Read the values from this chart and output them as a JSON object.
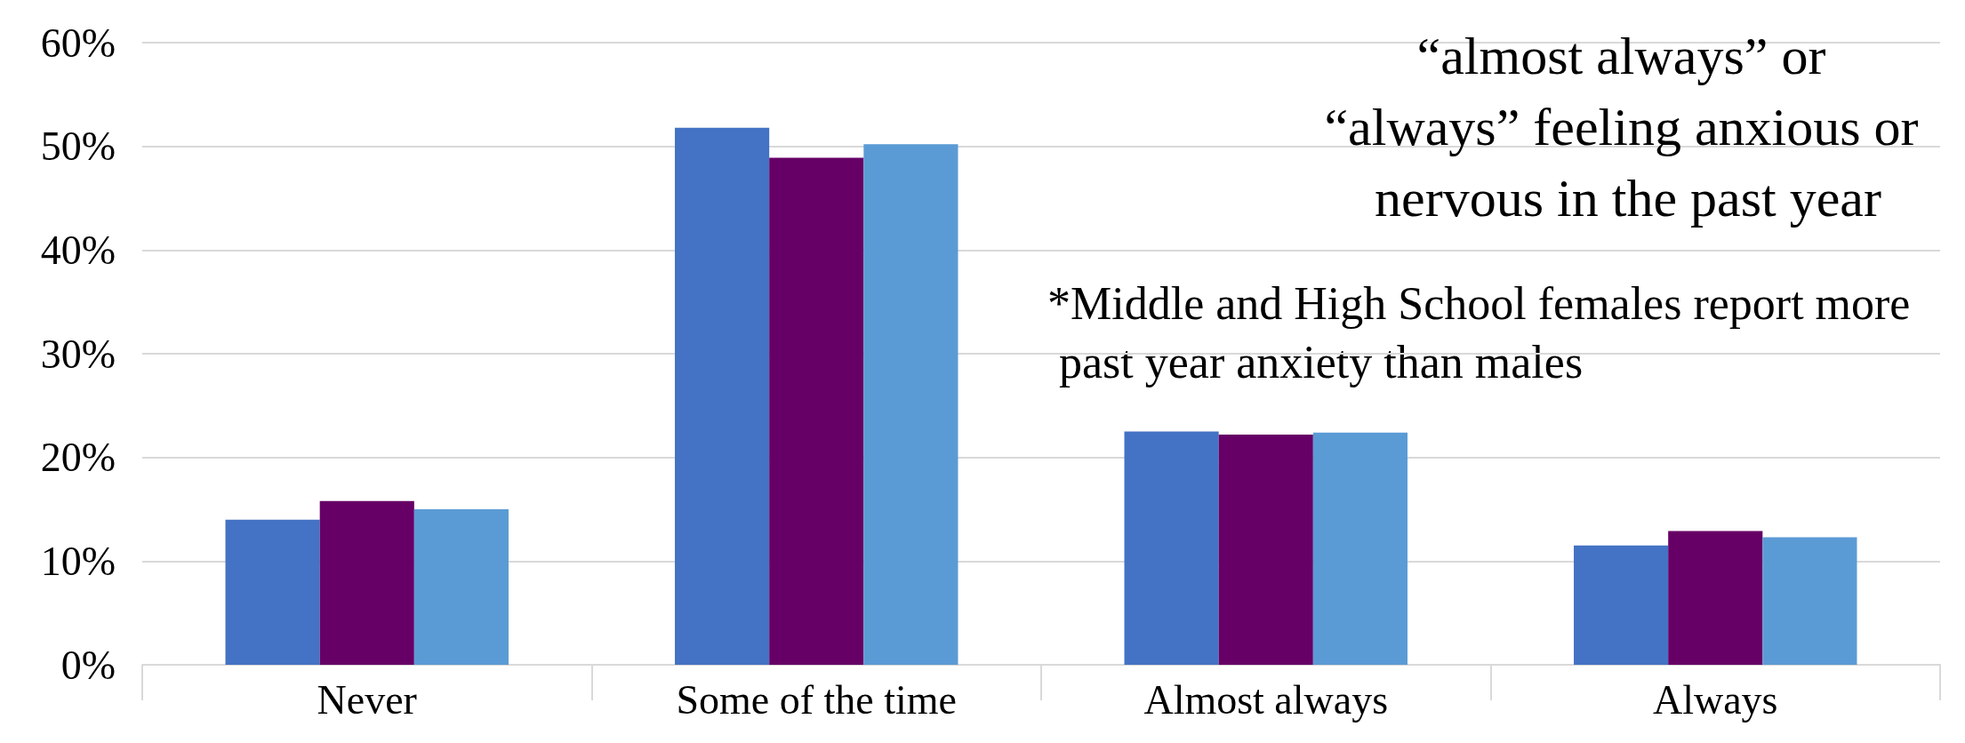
{
  "chart_data": {
    "type": "bar",
    "title": "“almost always” or “always” feeling anxious or nervous in the past year",
    "annotations": [
      "*Middle and High School females report more past year anxiety than males"
    ],
    "categories": [
      "Never",
      "Some of the time",
      "Almost always",
      "Always"
    ],
    "series": [
      {
        "color": "#4472c4",
        "values": [
          14.0,
          51.8,
          22.5,
          11.5
        ]
      },
      {
        "color": "#660066",
        "values": [
          15.8,
          48.9,
          22.2,
          12.9
        ]
      },
      {
        "color": "#5b9bd5",
        "values": [
          15.0,
          50.2,
          22.4,
          12.3
        ]
      }
    ],
    "ylim": [
      0,
      60
    ],
    "yticks": [
      {
        "value": 0,
        "label": "0%"
      },
      {
        "value": 10,
        "label": "10%"
      },
      {
        "value": 20,
        "label": "20%"
      },
      {
        "value": 30,
        "label": "30%"
      },
      {
        "value": 40,
        "label": "40%"
      },
      {
        "value": 50,
        "label": "50%"
      },
      {
        "value": 60,
        "label": "60%"
      }
    ],
    "grid": "y"
  }
}
